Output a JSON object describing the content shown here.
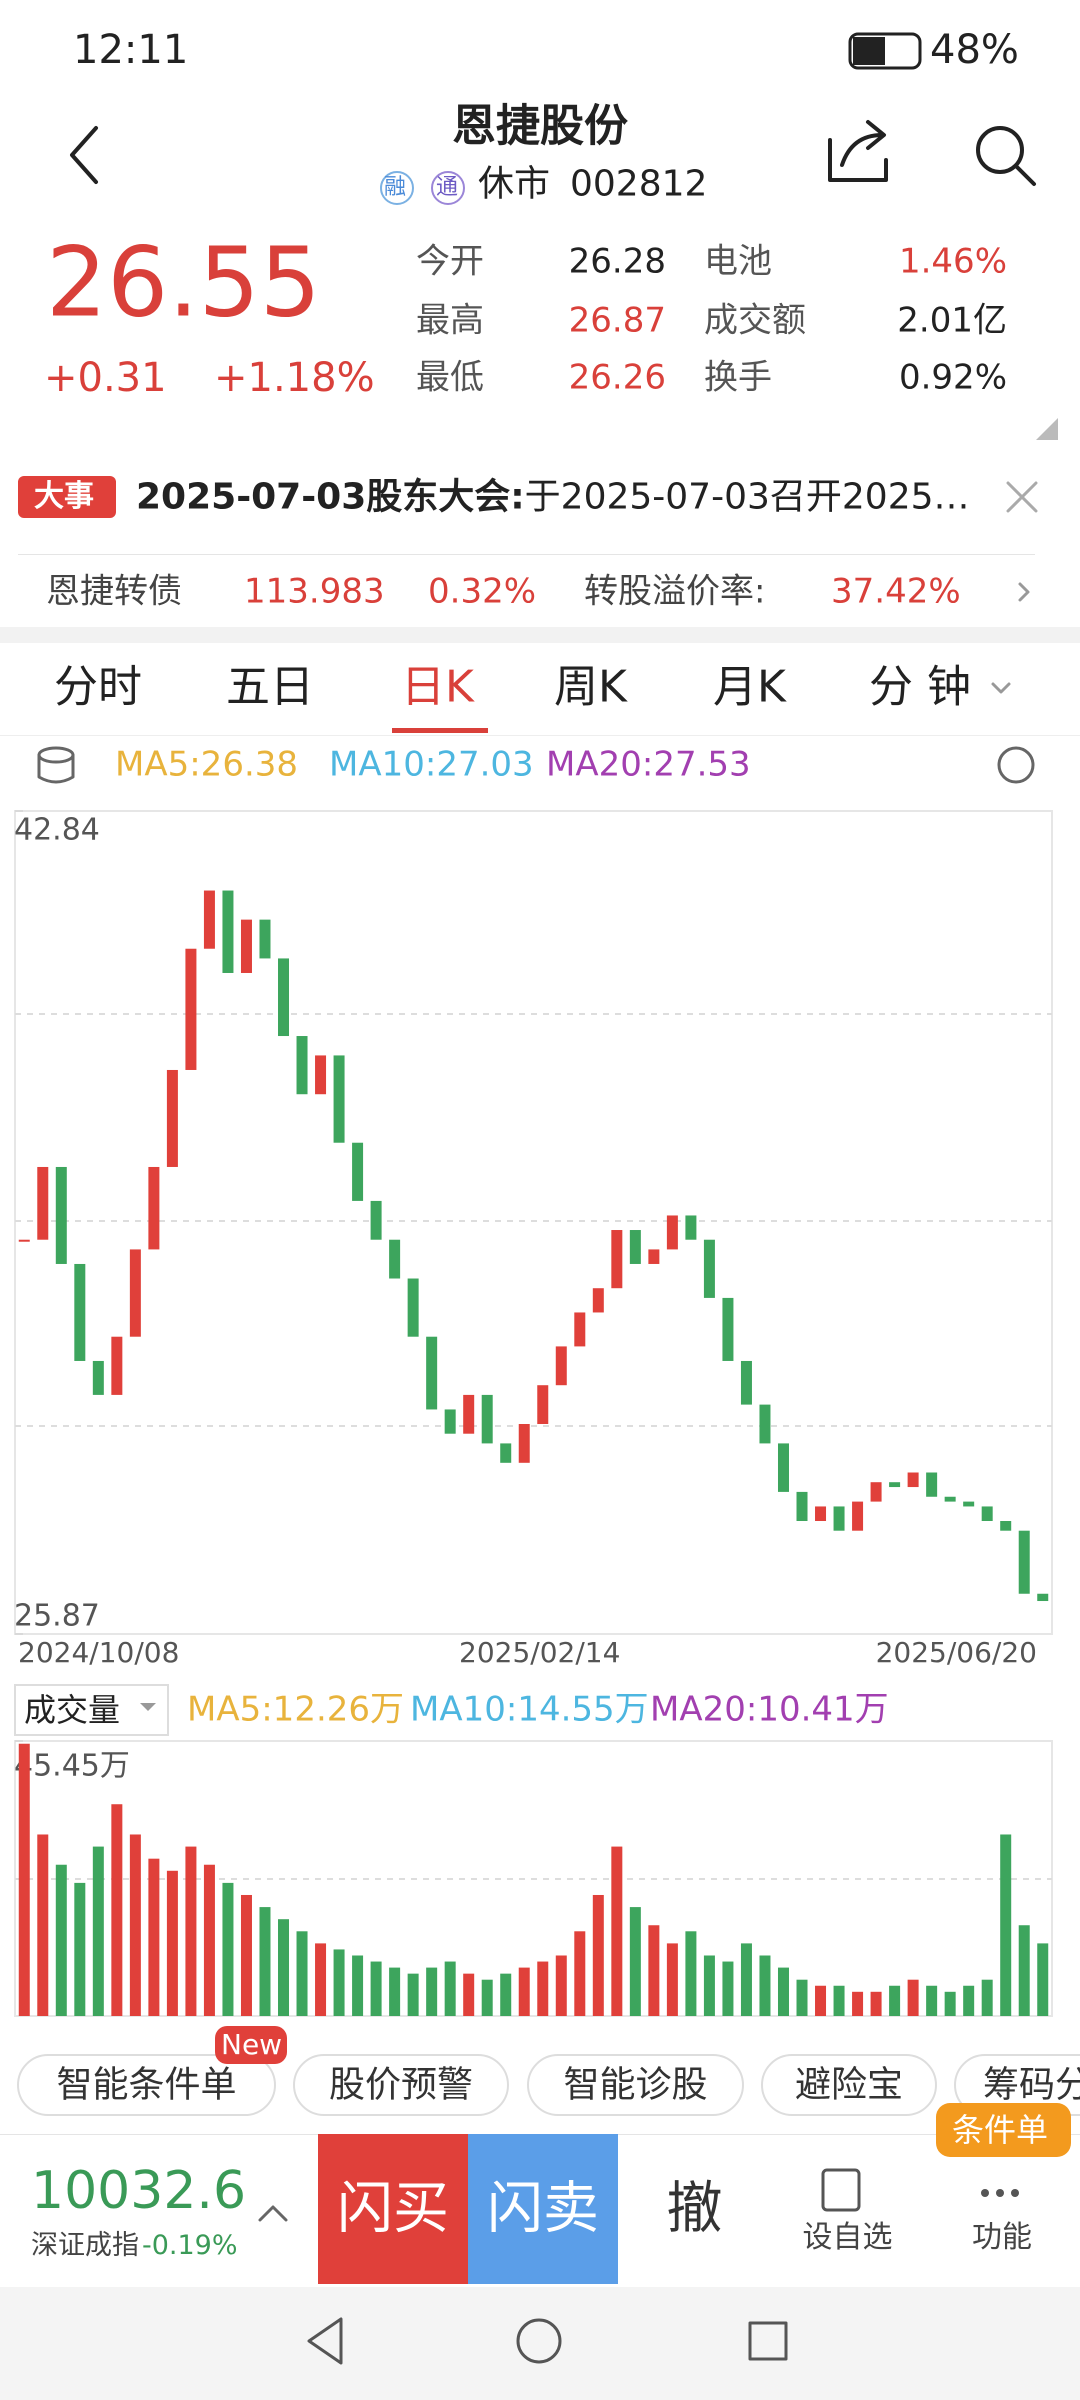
{
  "status_bar": {
    "time": "12:11",
    "battery": "48%"
  },
  "header": {
    "title": "恩捷股份",
    "badges": [
      "融",
      "通"
    ],
    "status": "休市",
    "code": "002812"
  },
  "quote": {
    "price": "26.55",
    "change": "+0.31",
    "change_pct": "+1.18%",
    "stats": [
      {
        "label": "今开",
        "value": "26.28"
      },
      {
        "label": "最高",
        "value": "26.87"
      },
      {
        "label": "最低",
        "value": "26.26"
      },
      {
        "label": "电池",
        "value": "1.46%"
      },
      {
        "label": "成交额",
        "value": "2.01亿"
      },
      {
        "label": "换手",
        "value": "0.92%"
      }
    ]
  },
  "event": {
    "tag": "大事",
    "title": "2025-07-03股东大会:",
    "text": "于2025-07-03召开2025…"
  },
  "bond": {
    "name": "恩捷转债",
    "price": "113.983",
    "change": "0.32%",
    "premium_label": "转股溢价率:",
    "premium": "37.42%"
  },
  "tabs": [
    "分时",
    "五日",
    "日K",
    "周K",
    "月K",
    "分 钟"
  ],
  "ma_bar": [
    {
      "text": "MA5:26.38",
      "color": "#e8b33c"
    },
    {
      "text": "MA10:27.03",
      "color": "#4db6e0"
    },
    {
      "text": "MA20:27.53",
      "color": "#a23fb0"
    }
  ],
  "chart_data": [
    {
      "type": "candlestick",
      "up_color": "#e0403a",
      "down_color": "#3da55d",
      "values": [
        34.0,
        35.5,
        33.5,
        31.5,
        30.8,
        32.0,
        33.8,
        35.5,
        37.5,
        40.0,
        41.2,
        39.5,
        40.6,
        39.8,
        38.2,
        37.0,
        37.8,
        36.0,
        34.8,
        34.0,
        33.2,
        32.0,
        30.5,
        30.0,
        30.8,
        29.8,
        29.4,
        30.2,
        31.0,
        31.8,
        32.5,
        33.0,
        34.2,
        33.5,
        33.8,
        34.5,
        34.0,
        32.8,
        31.5,
        30.6,
        29.8,
        28.8,
        28.2,
        28.5,
        28.0,
        28.6,
        29.0,
        28.9,
        29.2,
        28.7,
        28.6,
        28.5,
        28.2,
        28.0,
        26.7,
        26.55
      ],
      "ylim": [
        25.87,
        42.84
      ],
      "yticks": [
        42.84,
        25.87
      ],
      "x_labels": [
        "2024/10/08",
        "2025/02/14",
        "2025/06/20"
      ]
    },
    {
      "type": "bar",
      "label": "成交量",
      "ma": [
        {
          "text": "MA5:12.26万",
          "color": "#e8b33c"
        },
        {
          "text": "MA10:14.55万",
          "color": "#4db6e0"
        },
        {
          "text": "MA20:10.41万",
          "color": "#a23fb0"
        }
      ],
      "values": [
        45,
        30,
        25,
        22,
        28,
        35,
        30,
        26,
        24,
        28,
        25,
        22,
        20,
        18,
        16,
        14,
        12,
        11,
        10,
        9,
        8,
        7,
        8,
        9,
        7,
        6,
        7,
        8,
        9,
        10,
        14,
        20,
        28,
        18,
        15,
        12,
        14,
        10,
        9,
        12,
        10,
        8,
        6,
        5,
        5,
        4,
        4,
        5,
        6,
        5,
        4,
        5,
        6,
        30,
        15,
        12
      ],
      "ylim": [
        0,
        45.45
      ],
      "yticks": [
        {
          "value": 45.45,
          "label": "45.45万"
        }
      ]
    }
  ],
  "chips": {
    "items": [
      "智能条件单",
      "股价预警",
      "智能诊股",
      "避险宝",
      "筹码分布"
    ],
    "new_badge": "New",
    "order_badge": "条件单"
  },
  "bottom": {
    "index_value": "10032.6",
    "index_name": "深证成指",
    "index_change": "-0.19%",
    "buy": "闪买",
    "sell": "闪卖",
    "cancel": "撤",
    "watch": "设自选",
    "more": "功能"
  }
}
